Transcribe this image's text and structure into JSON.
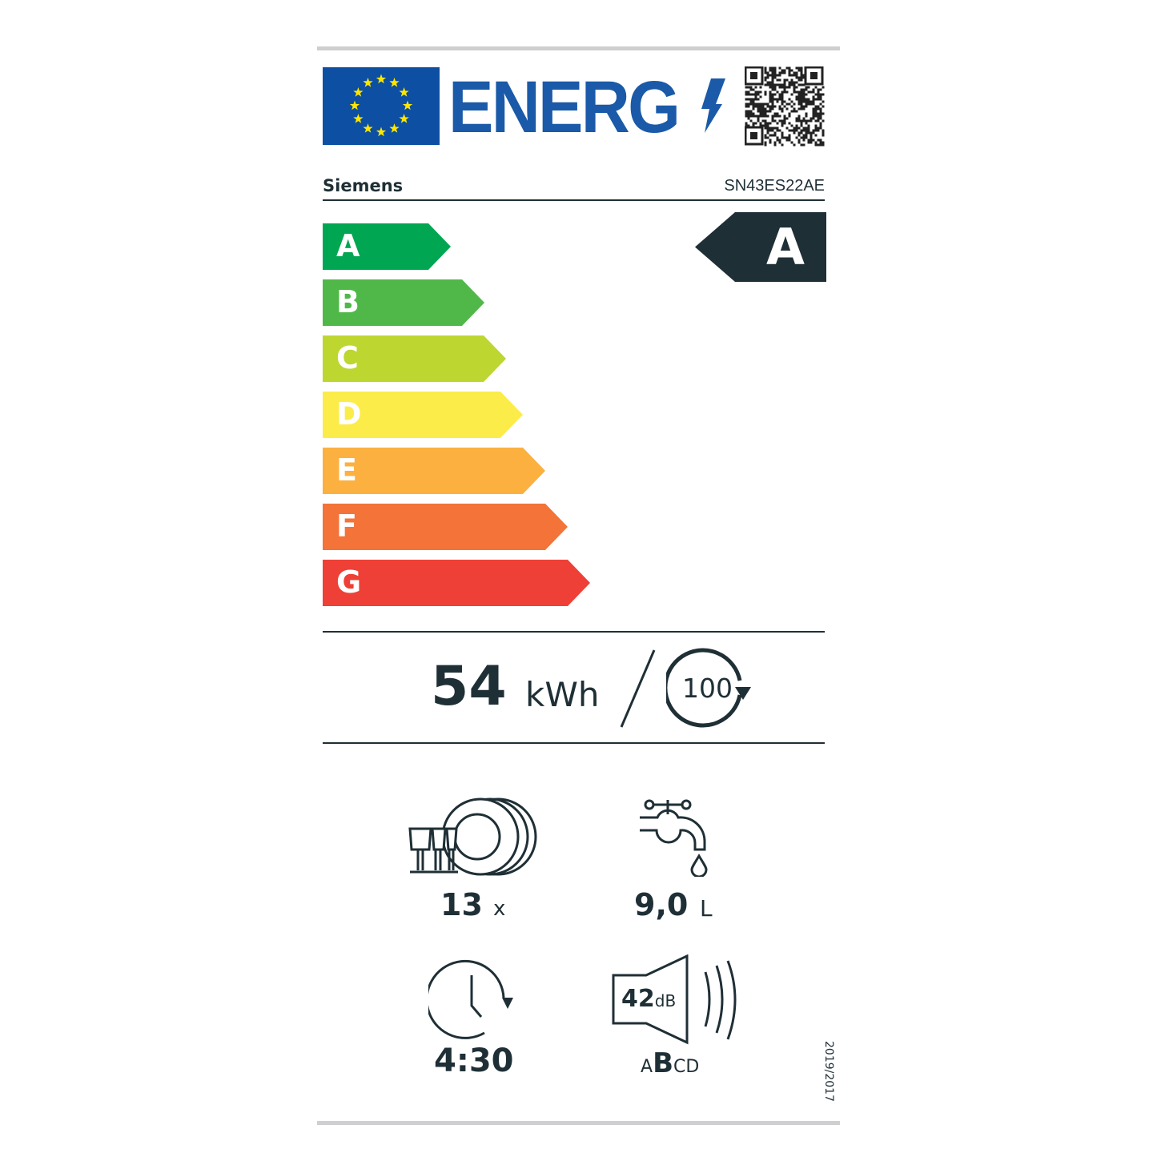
{
  "header": {
    "logo_text": "ENERG",
    "eu_flag": "eu-flag-icon",
    "qr": "qr-code"
  },
  "supplier": "Siemens",
  "model": "SN43ES22AE",
  "scale": [
    {
      "label": "A",
      "color": "#00a651"
    },
    {
      "label": "B",
      "color": "#50b848"
    },
    {
      "label": "C",
      "color": "#bed630"
    },
    {
      "label": "D",
      "color": "#fcec4a"
    },
    {
      "label": "E",
      "color": "#fbb040"
    },
    {
      "label": "F",
      "color": "#f37338"
    },
    {
      "label": "G",
      "color": "#ee4036"
    }
  ],
  "rating": {
    "class": "A",
    "color": "#1f2f36"
  },
  "energy": {
    "value": "54",
    "unit": "kWh",
    "cycles": "100"
  },
  "specs": {
    "place_settings": {
      "value": "13",
      "unit": "x"
    },
    "water": {
      "value": "9,0",
      "unit": "L"
    },
    "duration": {
      "value": "4:30"
    },
    "noise": {
      "value": "42",
      "unit": "dB",
      "classes_pre": "A",
      "class_selected": "B",
      "classes_post": "CD"
    }
  },
  "regulation": "2019/2017"
}
